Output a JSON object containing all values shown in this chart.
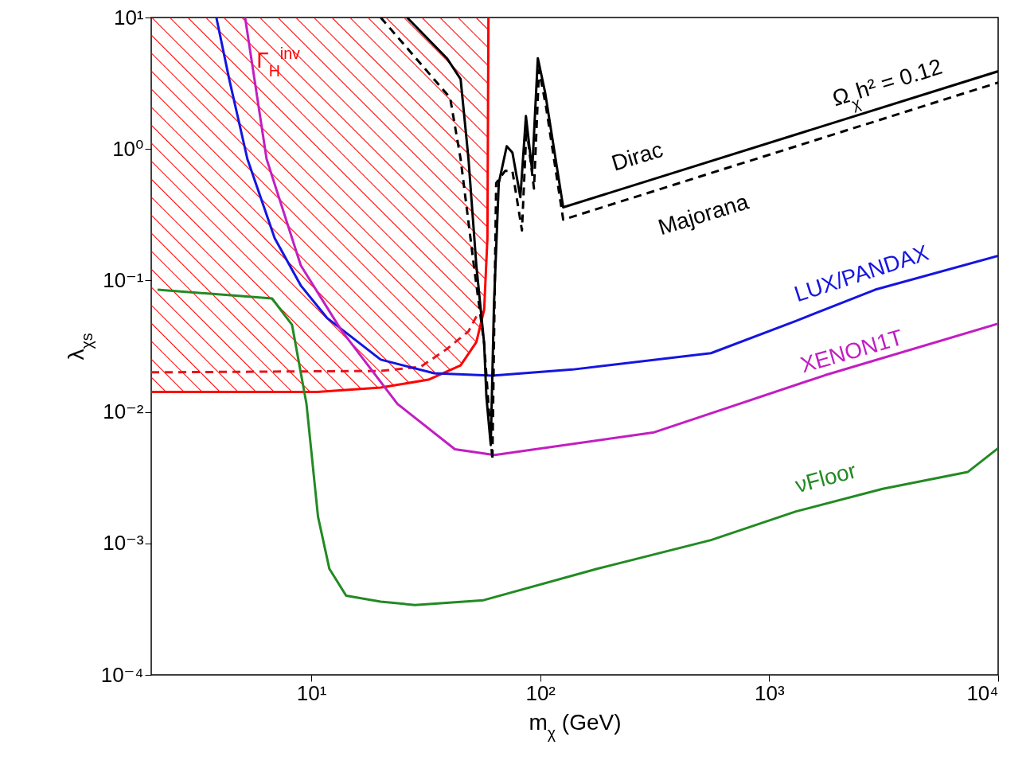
{
  "chart_data": {
    "type": "line",
    "xlabel": "m$_{χ}$ (GeV)",
    "ylabel": "λ$_{χs}$",
    "log": "xy",
    "xlim": [
      2,
      10000
    ],
    "xticks": [
      {
        "value": 10,
        "label": "10¹"
      },
      {
        "value": 100,
        "label": "10²"
      },
      {
        "value": 1000,
        "label": "10³"
      },
      {
        "value": 10000,
        "label": "10⁴"
      }
    ],
    "ylim": [
      0.0001,
      10
    ],
    "yticks": [
      {
        "value": 0.0001,
        "label": "10⁻⁴"
      },
      {
        "value": 0.001,
        "label": "10⁻³"
      },
      {
        "value": 0.01,
        "label": "10⁻²"
      },
      {
        "value": 0.1,
        "label": "10⁻¹"
      },
      {
        "value": 1,
        "label": "10⁰"
      },
      {
        "value": 10,
        "label": "10¹"
      }
    ],
    "series": [
      {
        "name": "Γ$_{H}$$^{inv}$",
        "color": "#ff0000",
        "x": [
          2,
          10.6,
          20.1,
          32.5,
          44.9,
          52.6,
          56.9,
          58.8,
          59.4
        ],
        "values": [
          0.0142,
          0.0142,
          0.0153,
          0.0176,
          0.0226,
          0.034,
          0.06,
          0.21,
          10
        ],
        "lower": [
          0.0142,
          0.0142,
          0.0153,
          0.0176,
          0.0226,
          0.034,
          0.06,
          0.21,
          10
        ],
        "upper": [
          10,
          10,
          10,
          10,
          10,
          10,
          10,
          10,
          10
        ]
      },
      {
        "color": "#e8141e",
        "line_style": "dashed",
        "x": [
          2,
          20,
          30,
          39,
          48.6,
          54
        ],
        "values": [
          0.02,
          0.0205,
          0.022,
          0.03,
          0.041,
          0.058
        ]
      },
      {
        "name": "LUX/PANDAX",
        "color": "#1515e0",
        "x": [
          3.85,
          4.38,
          5.26,
          6.92,
          9.02,
          11.7,
          20.1,
          34.4,
          61.8,
          138,
          557,
          1300,
          2900,
          10000
        ],
        "values": [
          10,
          3.4,
          0.84,
          0.21,
          0.091,
          0.052,
          0.025,
          0.0197,
          0.0189,
          0.021,
          0.028,
          0.049,
          0.085,
          0.154
        ]
      },
      {
        "name": "XENON1T",
        "color": "#c21ec2",
        "x": [
          5.14,
          6.38,
          9.0,
          13.5,
          23.8,
          42.4,
          63.2,
          315,
          1750,
          10000
        ],
        "values": [
          10,
          0.84,
          0.13,
          0.042,
          0.0115,
          0.0052,
          0.0047,
          0.007,
          0.019,
          0.047
        ]
      },
      {
        "name": "νFloor",
        "color": "#238a23",
        "x": [
          2.13,
          6.74,
          8.24,
          9.53,
          10.7,
          12.0,
          14.2,
          20.1,
          28.4,
          56.6,
          177,
          557,
          1310,
          3130,
          7380,
          10000
        ],
        "values": [
          0.085,
          0.073,
          0.046,
          0.0115,
          0.0016,
          0.00064,
          0.0004,
          0.00036,
          0.00034,
          0.00037,
          0.00064,
          0.00106,
          0.00175,
          0.0026,
          0.0035,
          0.0053
        ]
      },
      {
        "name": "Majorana",
        "color": "#000000",
        "line_style": "dashed",
        "x": [
          20.1,
          40.4,
          44.9,
          51.3,
          56.9,
          61.8,
          64.2,
          70.2,
          75.6,
          83.2,
          87.1,
          93.9,
          98.8,
          106,
          126,
          10000
        ],
        "values": [
          10,
          2.45,
          0.84,
          0.13,
          0.033,
          0.0043,
          0.55,
          0.68,
          0.68,
          0.24,
          1.45,
          0.5,
          4.0,
          2.1,
          0.29,
          3.2
        ]
      },
      {
        "name": "Dirac",
        "color": "#000000",
        "line_style": "solid",
        "x": [
          26.2,
          39.1,
          44.9,
          48.6,
          52.6,
          56.9,
          58.2,
          60.8,
          62.8,
          65.9,
          71.4,
          75.6,
          81.9,
          86.6,
          92.2,
          97.6,
          105,
          126,
          10000
        ],
        "values": [
          10,
          4.9,
          3.4,
          0.84,
          0.13,
          0.033,
          0.013,
          0.0056,
          0.066,
          0.55,
          1.05,
          0.94,
          0.43,
          1.78,
          0.68,
          4.9,
          2.7,
          0.36,
          3.9
        ]
      }
    ],
    "annotations": [
      "Ω$_{χ}$h² = 0.12"
    ]
  }
}
